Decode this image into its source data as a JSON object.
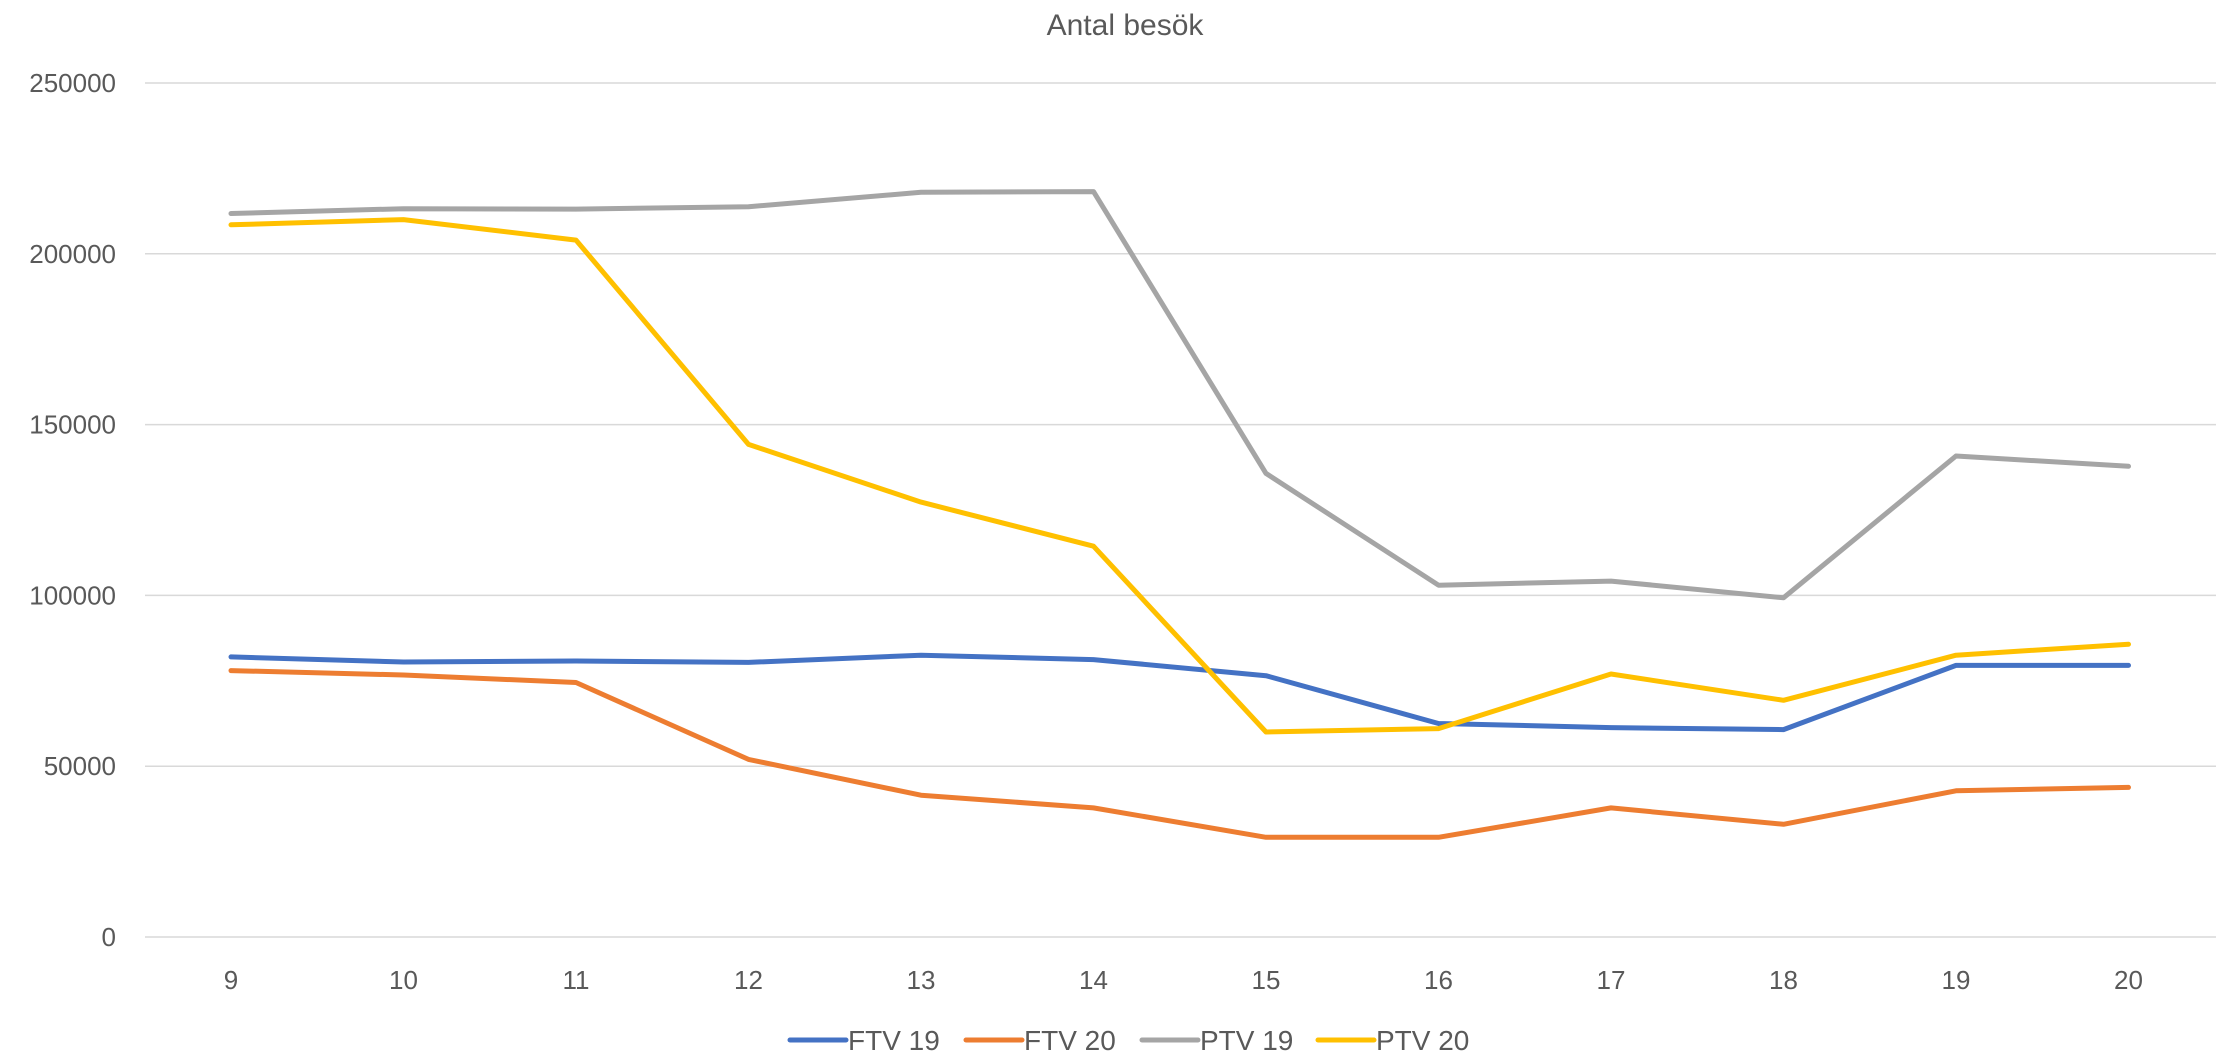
{
  "chart_data": {
    "type": "line",
    "title": "Antal besök",
    "xlabel": "",
    "ylabel": "",
    "categories": [
      "9",
      "10",
      "11",
      "12",
      "13",
      "14",
      "15",
      "16",
      "17",
      "18",
      "19",
      "20"
    ],
    "ylim": [
      0,
      250000
    ],
    "yticks": [
      "0",
      "50000",
      "100000",
      "150000",
      "200000",
      "250000"
    ],
    "grid": true,
    "legend_position": "bottom",
    "series": [
      {
        "name": "FTV 19",
        "color": "#4472C4",
        "values": [
          82000,
          80500,
          80800,
          80400,
          82500,
          81200,
          76500,
          62500,
          61300,
          60700,
          79500,
          79500
        ]
      },
      {
        "name": "FTV 20",
        "color": "#ED7D31",
        "values": [
          78000,
          76700,
          74500,
          52000,
          41500,
          37800,
          29200,
          29200,
          37800,
          33000,
          42800,
          43800
        ]
      },
      {
        "name": "PTV 19",
        "color": "#A5A5A5",
        "values": [
          211800,
          213200,
          213100,
          213800,
          218000,
          218200,
          135700,
          103000,
          104200,
          99300,
          140800,
          137800
        ]
      },
      {
        "name": "PTV 20",
        "color": "#FFC000",
        "values": [
          208500,
          210000,
          204000,
          144200,
          127300,
          114400,
          60000,
          61000,
          77000,
          69300,
          82500,
          85700
        ]
      }
    ]
  }
}
